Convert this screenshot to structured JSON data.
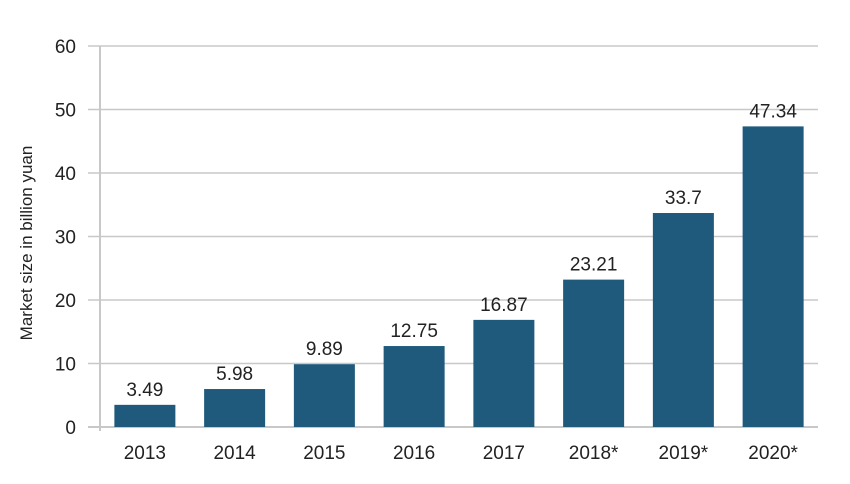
{
  "chart_data": {
    "type": "bar",
    "title": "",
    "xlabel": "",
    "ylabel": "Market size in billion yuan",
    "categories": [
      "2013",
      "2014",
      "2015",
      "2016",
      "2017",
      "2018*",
      "2019*",
      "2020*"
    ],
    "values": [
      3.49,
      5.98,
      9.89,
      12.75,
      16.87,
      23.21,
      33.7,
      47.34
    ],
    "value_labels": [
      "3.49",
      "5.98",
      "9.89",
      "12.75",
      "16.87",
      "23.21",
      "33.7",
      "47.34"
    ],
    "ylim": [
      0,
      60
    ],
    "yticks": [
      0,
      10,
      20,
      30,
      40,
      50,
      60
    ],
    "grid": true,
    "bar_color": "#1f5a7d",
    "grid_color": "#c8c8c8"
  }
}
